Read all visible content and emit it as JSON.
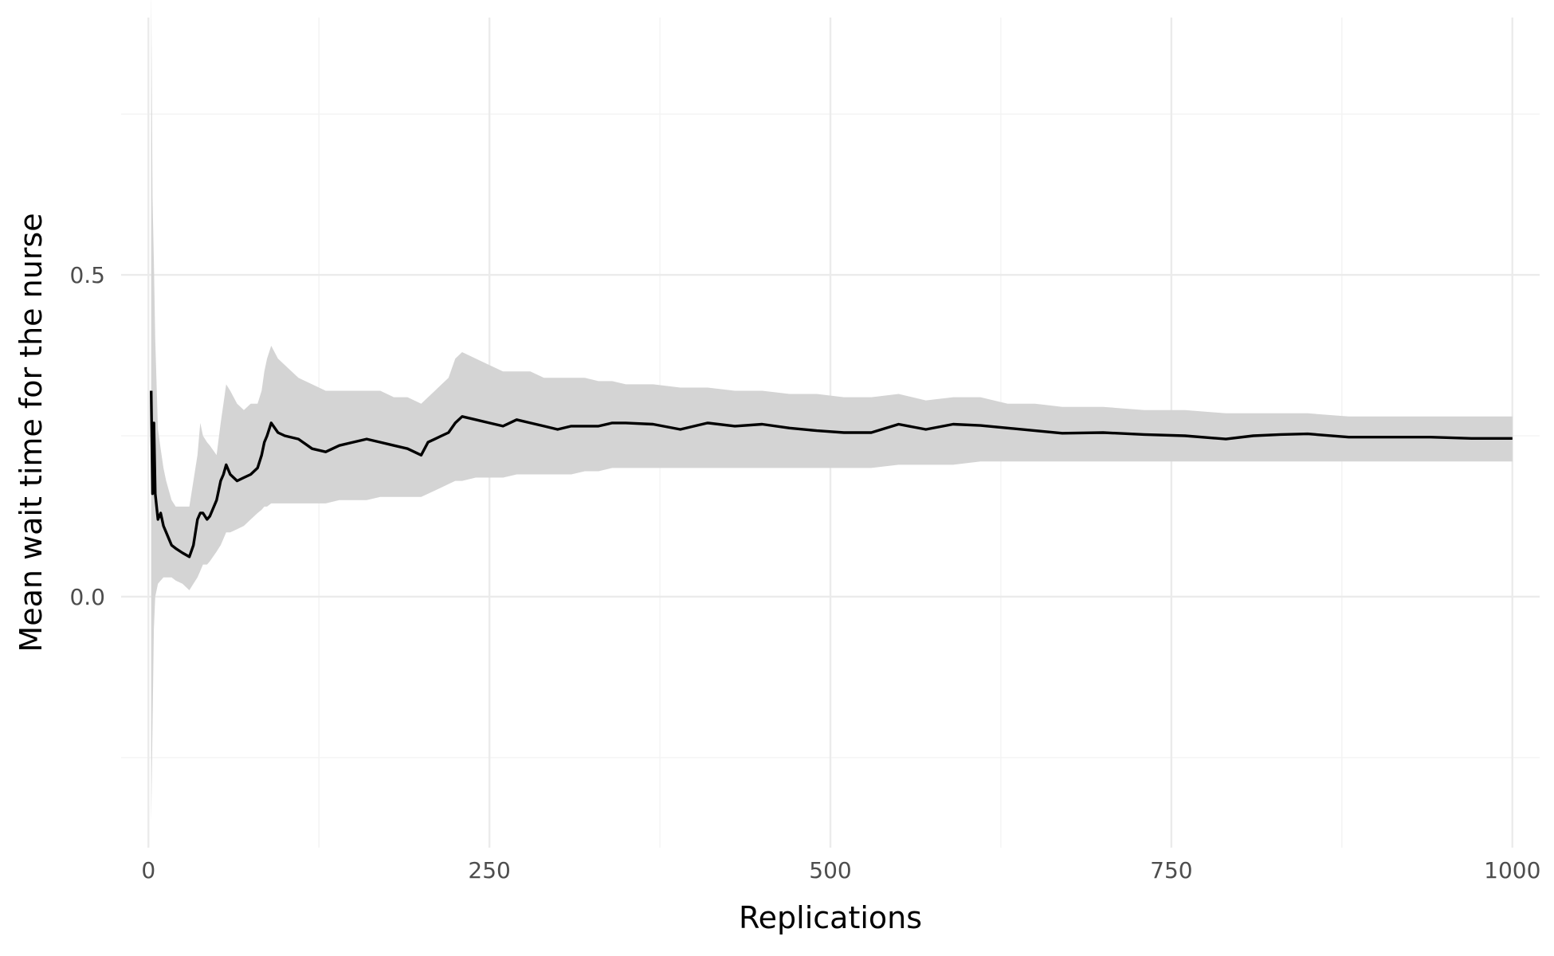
{
  "chart_data": {
    "type": "line",
    "title": "",
    "xlabel": "Replications",
    "ylabel": "Mean wait time for the nurse",
    "xlim": [
      -20,
      1020
    ],
    "ylim": [
      -0.39,
      0.9
    ],
    "x_ticks": [
      0,
      250,
      500,
      750,
      1000
    ],
    "x_tick_labels": [
      "0",
      "250",
      "500",
      "750",
      "1000"
    ],
    "y_ticks": [
      0.0,
      0.5
    ],
    "y_tick_labels": [
      "0.0",
      "0.5"
    ],
    "grid": true,
    "legend": "none",
    "colors": {
      "line": "#000000",
      "ribbon": "#d4d4d4",
      "grid_major": "#ebebeb",
      "grid_minor": "#f3f3f3",
      "tick_text": "#4d4d4d"
    },
    "series": [
      {
        "x": [
          2,
          3,
          4,
          5,
          7,
          9,
          11,
          13,
          15,
          17,
          20,
          25,
          30,
          33,
          36,
          38,
          40,
          43,
          45,
          50,
          53,
          55,
          57,
          60,
          65,
          70,
          75,
          80,
          83,
          85,
          87,
          90,
          95,
          100,
          110,
          120,
          130,
          140,
          150,
          160,
          170,
          180,
          190,
          200,
          205,
          210,
          215,
          220,
          225,
          230,
          240,
          250,
          260,
          270,
          280,
          290,
          300,
          310,
          320,
          330,
          340,
          350,
          370,
          390,
          410,
          430,
          450,
          470,
          490,
          510,
          530,
          550,
          570,
          590,
          610,
          630,
          650,
          670,
          700,
          730,
          760,
          790,
          810,
          830,
          850,
          880,
          910,
          940,
          970,
          1000
        ],
        "y": [
          0.32,
          0.16,
          0.27,
          0.16,
          0.12,
          0.13,
          0.11,
          0.1,
          0.09,
          0.08,
          0.075,
          0.068,
          0.062,
          0.08,
          0.12,
          0.13,
          0.13,
          0.12,
          0.125,
          0.15,
          0.18,
          0.19,
          0.205,
          0.19,
          0.18,
          0.185,
          0.19,
          0.2,
          0.22,
          0.24,
          0.25,
          0.27,
          0.255,
          0.25,
          0.245,
          0.23,
          0.225,
          0.235,
          0.24,
          0.245,
          0.24,
          0.235,
          0.23,
          0.22,
          0.24,
          0.245,
          0.25,
          0.255,
          0.27,
          0.28,
          0.275,
          0.27,
          0.265,
          0.275,
          0.27,
          0.265,
          0.26,
          0.265,
          0.265,
          0.265,
          0.27,
          0.27,
          0.268,
          0.26,
          0.27,
          0.265,
          0.268,
          0.262,
          0.258,
          0.255,
          0.255,
          0.268,
          0.26,
          0.268,
          0.266,
          0.262,
          0.258,
          0.254,
          0.255,
          0.252,
          0.25,
          0.245,
          0.25,
          0.252,
          0.253,
          0.248,
          0.248,
          0.248,
          0.246,
          0.246
        ],
        "lower": [
          -0.35,
          -0.2,
          -0.05,
          0.0,
          0.02,
          0.025,
          0.03,
          0.03,
          0.03,
          0.03,
          0.025,
          0.02,
          0.01,
          0.02,
          0.03,
          0.04,
          0.05,
          0.05,
          0.055,
          0.07,
          0.08,
          0.09,
          0.1,
          0.1,
          0.105,
          0.11,
          0.12,
          0.13,
          0.135,
          0.14,
          0.14,
          0.145,
          0.145,
          0.145,
          0.145,
          0.145,
          0.145,
          0.15,
          0.15,
          0.15,
          0.155,
          0.155,
          0.155,
          0.155,
          0.16,
          0.165,
          0.17,
          0.175,
          0.18,
          0.18,
          0.185,
          0.185,
          0.185,
          0.19,
          0.19,
          0.19,
          0.19,
          0.19,
          0.195,
          0.195,
          0.2,
          0.2,
          0.2,
          0.2,
          0.2,
          0.2,
          0.2,
          0.2,
          0.2,
          0.2,
          0.2,
          0.205,
          0.205,
          0.205,
          0.21,
          0.21,
          0.21,
          0.21,
          0.21,
          0.21,
          0.21,
          0.21,
          0.21,
          0.21,
          0.21,
          0.21,
          0.21,
          0.21,
          0.21,
          0.21
        ],
        "upper": [
          0.95,
          0.62,
          0.52,
          0.4,
          0.26,
          0.23,
          0.2,
          0.18,
          0.165,
          0.15,
          0.14,
          0.14,
          0.14,
          0.18,
          0.22,
          0.27,
          0.25,
          0.24,
          0.235,
          0.22,
          0.27,
          0.3,
          0.33,
          0.32,
          0.3,
          0.29,
          0.3,
          0.3,
          0.32,
          0.35,
          0.37,
          0.39,
          0.37,
          0.36,
          0.34,
          0.33,
          0.32,
          0.32,
          0.32,
          0.32,
          0.32,
          0.31,
          0.31,
          0.3,
          0.31,
          0.32,
          0.33,
          0.34,
          0.37,
          0.38,
          0.37,
          0.36,
          0.35,
          0.35,
          0.35,
          0.34,
          0.34,
          0.34,
          0.34,
          0.335,
          0.335,
          0.33,
          0.33,
          0.325,
          0.325,
          0.32,
          0.32,
          0.315,
          0.315,
          0.31,
          0.31,
          0.315,
          0.305,
          0.31,
          0.31,
          0.3,
          0.3,
          0.295,
          0.295,
          0.29,
          0.29,
          0.285,
          0.285,
          0.285,
          0.285,
          0.28,
          0.28,
          0.28,
          0.28,
          0.28
        ]
      }
    ]
  }
}
